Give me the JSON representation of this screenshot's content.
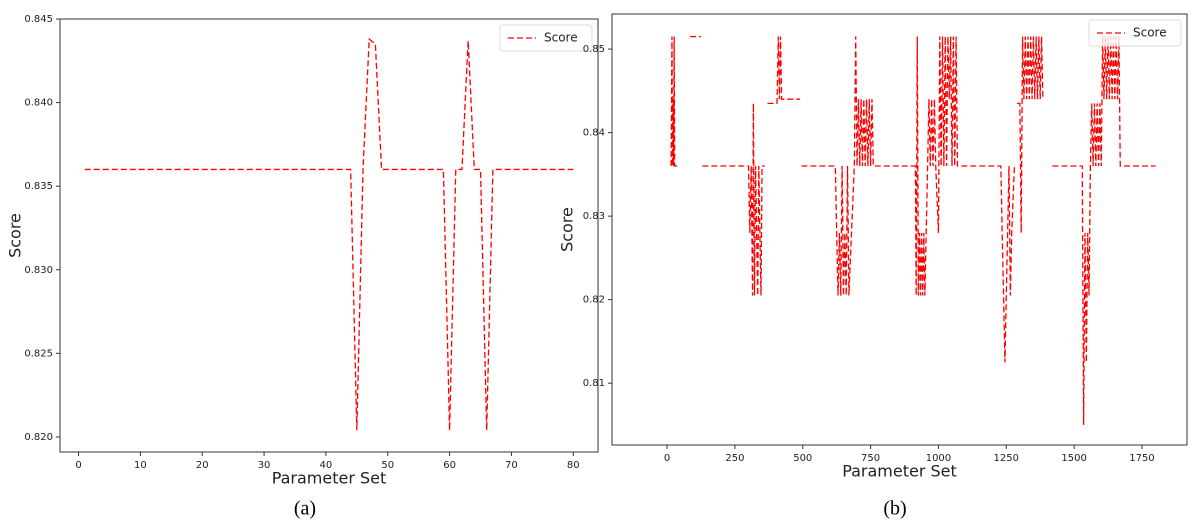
{
  "chart_data": [
    {
      "type": "line",
      "caption": "(a)",
      "xlabel": "Parameter Set",
      "ylabel": "Score",
      "x": [
        1,
        44,
        45,
        46,
        47,
        48,
        49,
        59,
        60,
        61,
        62,
        63,
        64,
        65,
        66,
        67,
        80
      ],
      "series": [
        {
          "name": "Score",
          "color": "#ff0000",
          "linestyle": "dashed",
          "values": [
            0.836,
            0.836,
            0.8204,
            0.836,
            0.8438,
            0.8435,
            0.836,
            0.836,
            0.8204,
            0.836,
            0.836,
            0.8437,
            0.836,
            0.836,
            0.8204,
            0.836,
            0.836
          ]
        }
      ],
      "xlim": [
        -3,
        84
      ],
      "xticks": [
        0,
        10,
        20,
        30,
        40,
        50,
        60,
        70,
        80
      ],
      "ylim": [
        0.8191,
        0.845
      ],
      "yticks": [
        {
          "value": 0.82,
          "label": "0.820"
        },
        {
          "value": 0.825,
          "label": "0.825"
        },
        {
          "value": 0.83,
          "label": "0.830"
        },
        {
          "value": 0.835,
          "label": "0.835"
        },
        {
          "value": 0.84,
          "label": "0.840"
        },
        {
          "value": 0.845,
          "label": "0.845"
        }
      ],
      "legend": "upper right"
    },
    {
      "type": "line",
      "caption": "(b)",
      "xlabel": "Parameter Set",
      "ylabel": "Score",
      "x": [
        15,
        18,
        20,
        22,
        24,
        26,
        28,
        40,
        60,
        85,
        125,
        128,
        130,
        300,
        305,
        310,
        315,
        318,
        322,
        326,
        330,
        334,
        338,
        342,
        346,
        350,
        360,
        365,
        370,
        405,
        410,
        414,
        418,
        422,
        490,
        492,
        495,
        620,
        625,
        630,
        635,
        640,
        645,
        650,
        655,
        660,
        665,
        670,
        690,
        695,
        700,
        705,
        710,
        715,
        720,
        725,
        730,
        735,
        740,
        745,
        750,
        755,
        760,
        915,
        918,
        922,
        926,
        930,
        934,
        938,
        942,
        946,
        950,
        960,
        965,
        970,
        975,
        980,
        985,
        990,
        1000,
        1005,
        1010,
        1015,
        1020,
        1025,
        1030,
        1035,
        1040,
        1045,
        1050,
        1055,
        1060,
        1065,
        1070,
        1080,
        1230,
        1235,
        1240,
        1245,
        1250,
        1255,
        1260,
        1265,
        1270,
        1280,
        1285,
        1290,
        1300,
        1305,
        1310,
        1315,
        1320,
        1325,
        1330,
        1335,
        1340,
        1345,
        1350,
        1355,
        1360,
        1365,
        1370,
        1375,
        1380,
        1385,
        1400,
        1420,
        1530,
        1535,
        1540,
        1545,
        1550,
        1555,
        1560,
        1565,
        1570,
        1575,
        1580,
        1585,
        1590,
        1595,
        1600,
        1605,
        1610,
        1615,
        1620,
        1625,
        1630,
        1635,
        1640,
        1645,
        1650,
        1655,
        1660,
        1665,
        1670,
        1800
      ],
      "series": [
        {
          "name": "Score",
          "color": "#ff0000",
          "linestyle": "dashed",
          "values": [
            0.836,
            0.8515,
            0.836,
            0.844,
            0.836,
            0.8515,
            0.836,
            0.836,
            null,
            0.8515,
            0.8515,
            null,
            0.836,
            0.836,
            0.828,
            0.836,
            0.8205,
            0.8435,
            0.8205,
            0.836,
            0.828,
            0.8205,
            0.836,
            0.828,
            0.8205,
            0.836,
            0.836,
            null,
            0.8435,
            0.8435,
            0.8515,
            0.844,
            0.8515,
            0.844,
            0.844,
            null,
            0.836,
            0.836,
            0.828,
            0.8205,
            0.828,
            0.8205,
            0.836,
            0.8205,
            0.828,
            0.8205,
            0.836,
            0.8205,
            0.836,
            0.8515,
            0.836,
            0.844,
            0.836,
            0.844,
            0.836,
            0.844,
            0.836,
            0.844,
            0.836,
            0.844,
            0.836,
            0.844,
            0.836,
            0.836,
            0.8205,
            0.8515,
            0.8205,
            0.828,
            0.8205,
            0.828,
            0.8205,
            0.828,
            0.8205,
            0.836,
            0.844,
            0.836,
            0.844,
            0.836,
            0.844,
            0.836,
            0.828,
            0.8515,
            0.836,
            0.8515,
            0.836,
            0.8515,
            0.836,
            0.8515,
            0.844,
            0.8515,
            0.836,
            0.8515,
            0.836,
            0.8515,
            0.836,
            0.836,
            0.836,
            0.828,
            0.8205,
            0.8125,
            0.8205,
            0.828,
            0.836,
            0.8205,
            0.828,
            0.836,
            null,
            0.8435,
            0.8435,
            0.828,
            0.8515,
            0.844,
            0.8515,
            0.844,
            0.8515,
            0.844,
            0.8515,
            0.844,
            0.8515,
            0.844,
            0.8515,
            0.844,
            0.8515,
            0.844,
            0.8515,
            0.844,
            null,
            0.836,
            0.836,
            0.805,
            0.828,
            0.8125,
            0.828,
            0.8205,
            0.836,
            0.8435,
            0.836,
            0.8435,
            0.836,
            0.8435,
            0.836,
            0.8435,
            0.836,
            0.8515,
            0.844,
            0.8515,
            0.844,
            0.8515,
            0.844,
            0.8515,
            0.844,
            0.8515,
            0.844,
            0.8515,
            0.844,
            0.8515,
            0.836,
            0.836
          ]
        }
      ],
      "xlim": [
        -203,
        1916
      ],
      "xticks": [
        0,
        250,
        500,
        750,
        1000,
        1250,
        1500,
        1750
      ],
      "ylim": [
        0.8026,
        0.8542
      ],
      "yticks": [
        0.81,
        0.82,
        0.83,
        0.84,
        0.85
      ],
      "legend": "upper right"
    }
  ]
}
